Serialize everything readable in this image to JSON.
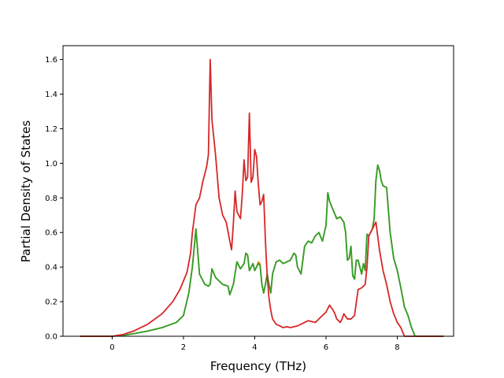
{
  "chart_data": {
    "type": "line",
    "xlabel": "Frequency (THz)",
    "ylabel": "Partial Density of States",
    "xlim": [
      -1.38,
      9.58
    ],
    "ylim": [
      0.0,
      1.68
    ],
    "xticks": [
      0,
      2,
      4,
      6,
      8
    ],
    "yticks": [
      0.0,
      0.2,
      0.4,
      0.6,
      0.8,
      1.0,
      1.2,
      1.4,
      1.6
    ],
    "xtick_labels": [
      "0",
      "2",
      "4",
      "6",
      "8"
    ],
    "ytick_labels": [
      "0.0",
      "0.2",
      "0.4",
      "0.6",
      "0.8",
      "1.0",
      "1.2",
      "1.4",
      "1.6"
    ],
    "grid": false,
    "series": [
      {
        "color": "#ff7f0e",
        "x": [
          -0.9,
          0.0,
          0.3,
          0.6,
          1.0,
          1.4,
          1.8,
          2.0,
          2.15,
          2.25,
          2.35,
          2.45,
          2.6,
          2.7,
          2.75,
          2.8,
          2.9,
          3.0,
          3.1,
          3.25,
          3.3,
          3.4,
          3.5,
          3.6,
          3.7,
          3.75,
          3.8,
          3.85,
          3.9,
          3.95,
          4.0,
          4.05,
          4.1,
          4.15,
          4.2,
          4.25,
          4.3,
          4.35,
          4.4,
          4.45,
          4.5,
          4.6,
          4.7,
          4.8,
          4.9,
          5.0,
          5.1,
          5.15,
          5.2,
          5.3,
          5.4,
          5.5,
          5.6,
          5.7,
          5.8,
          5.9,
          6.0,
          6.05,
          6.1,
          6.2,
          6.3,
          6.4,
          6.5,
          6.55,
          6.6,
          6.65,
          6.7,
          6.75,
          6.8,
          6.85,
          6.9,
          7.0,
          7.05,
          7.1,
          7.15,
          7.2,
          7.3,
          7.35,
          7.4,
          7.45,
          7.5,
          7.55,
          7.6,
          7.7,
          7.8,
          7.9,
          8.0,
          8.1,
          8.2,
          8.3,
          8.4,
          8.5,
          8.6,
          9.3
        ],
        "values": [
          0.0,
          0.0,
          0.005,
          0.015,
          0.03,
          0.05,
          0.08,
          0.12,
          0.25,
          0.4,
          0.62,
          0.36,
          0.3,
          0.29,
          0.3,
          0.39,
          0.34,
          0.32,
          0.3,
          0.29,
          0.24,
          0.3,
          0.43,
          0.39,
          0.42,
          0.48,
          0.47,
          0.38,
          0.4,
          0.42,
          0.38,
          0.4,
          0.43,
          0.42,
          0.3,
          0.25,
          0.3,
          0.36,
          0.3,
          0.25,
          0.36,
          0.43,
          0.44,
          0.42,
          0.43,
          0.44,
          0.48,
          0.47,
          0.4,
          0.36,
          0.52,
          0.55,
          0.54,
          0.58,
          0.6,
          0.55,
          0.64,
          0.83,
          0.78,
          0.73,
          0.68,
          0.69,
          0.66,
          0.6,
          0.44,
          0.45,
          0.52,
          0.35,
          0.33,
          0.44,
          0.44,
          0.36,
          0.42,
          0.38,
          0.59,
          0.58,
          0.62,
          0.68,
          0.9,
          0.99,
          0.96,
          0.9,
          0.87,
          0.86,
          0.6,
          0.45,
          0.38,
          0.28,
          0.17,
          0.12,
          0.05,
          0.0,
          0.0,
          0.0
        ]
      },
      {
        "color": "#2ca02c",
        "x": [
          -0.9,
          0.0,
          0.3,
          0.6,
          1.0,
          1.4,
          1.8,
          2.0,
          2.15,
          2.25,
          2.35,
          2.45,
          2.6,
          2.7,
          2.75,
          2.8,
          2.9,
          3.0,
          3.1,
          3.25,
          3.3,
          3.4,
          3.5,
          3.6,
          3.7,
          3.75,
          3.8,
          3.85,
          3.9,
          3.95,
          4.0,
          4.05,
          4.1,
          4.15,
          4.2,
          4.25,
          4.3,
          4.35,
          4.4,
          4.45,
          4.5,
          4.6,
          4.7,
          4.8,
          4.9,
          5.0,
          5.1,
          5.15,
          5.2,
          5.3,
          5.4,
          5.5,
          5.6,
          5.7,
          5.8,
          5.9,
          6.0,
          6.05,
          6.1,
          6.2,
          6.3,
          6.4,
          6.5,
          6.55,
          6.6,
          6.65,
          6.7,
          6.75,
          6.8,
          6.85,
          6.9,
          7.0,
          7.05,
          7.1,
          7.15,
          7.2,
          7.3,
          7.35,
          7.4,
          7.45,
          7.5,
          7.55,
          7.6,
          7.7,
          7.8,
          7.9,
          8.0,
          8.1,
          8.2,
          8.3,
          8.4,
          8.5,
          8.6,
          9.3
        ],
        "values": [
          0.0,
          0.0,
          0.005,
          0.015,
          0.03,
          0.05,
          0.08,
          0.12,
          0.25,
          0.4,
          0.62,
          0.36,
          0.3,
          0.29,
          0.3,
          0.39,
          0.34,
          0.32,
          0.3,
          0.29,
          0.24,
          0.3,
          0.43,
          0.39,
          0.42,
          0.48,
          0.47,
          0.38,
          0.4,
          0.42,
          0.38,
          0.4,
          0.42,
          0.41,
          0.3,
          0.25,
          0.3,
          0.36,
          0.3,
          0.25,
          0.36,
          0.43,
          0.44,
          0.42,
          0.43,
          0.44,
          0.48,
          0.47,
          0.4,
          0.36,
          0.52,
          0.55,
          0.54,
          0.58,
          0.6,
          0.55,
          0.64,
          0.83,
          0.78,
          0.73,
          0.68,
          0.69,
          0.66,
          0.6,
          0.44,
          0.45,
          0.52,
          0.35,
          0.33,
          0.44,
          0.44,
          0.36,
          0.42,
          0.38,
          0.59,
          0.58,
          0.62,
          0.68,
          0.9,
          0.99,
          0.96,
          0.9,
          0.87,
          0.86,
          0.6,
          0.45,
          0.38,
          0.28,
          0.17,
          0.12,
          0.05,
          0.0,
          0.0,
          0.0
        ]
      },
      {
        "color": "#d62728",
        "x": [
          -0.9,
          0.0,
          0.3,
          0.6,
          1.0,
          1.4,
          1.7,
          1.9,
          2.1,
          2.2,
          2.25,
          2.35,
          2.45,
          2.55,
          2.65,
          2.7,
          2.75,
          2.8,
          2.9,
          3.0,
          3.1,
          3.2,
          3.3,
          3.35,
          3.4,
          3.45,
          3.5,
          3.6,
          3.65,
          3.7,
          3.75,
          3.8,
          3.85,
          3.9,
          3.95,
          4.0,
          4.05,
          4.1,
          4.15,
          4.2,
          4.25,
          4.3,
          4.35,
          4.4,
          4.45,
          4.5,
          4.6,
          4.7,
          4.8,
          4.9,
          5.0,
          5.1,
          5.2,
          5.3,
          5.4,
          5.5,
          5.6,
          5.7,
          5.8,
          5.9,
          6.0,
          6.1,
          6.2,
          6.25,
          6.3,
          6.4,
          6.45,
          6.5,
          6.6,
          6.7,
          6.8,
          6.9,
          7.0,
          7.1,
          7.15,
          7.2,
          7.3,
          7.4,
          7.5,
          7.6,
          7.7,
          7.8,
          7.9,
          8.0,
          8.1,
          8.2,
          8.3,
          8.4,
          8.5,
          8.6,
          9.3
        ],
        "values": [
          0.0,
          0.0,
          0.01,
          0.03,
          0.07,
          0.13,
          0.2,
          0.27,
          0.37,
          0.48,
          0.6,
          0.76,
          0.8,
          0.9,
          0.98,
          1.05,
          1.6,
          1.25,
          1.05,
          0.8,
          0.7,
          0.66,
          0.55,
          0.5,
          0.65,
          0.84,
          0.72,
          0.68,
          0.82,
          1.02,
          0.9,
          0.92,
          1.29,
          0.89,
          0.92,
          1.08,
          1.04,
          0.88,
          0.76,
          0.78,
          0.82,
          0.55,
          0.35,
          0.22,
          0.15,
          0.1,
          0.07,
          0.06,
          0.05,
          0.055,
          0.05,
          0.055,
          0.06,
          0.07,
          0.08,
          0.09,
          0.085,
          0.08,
          0.1,
          0.12,
          0.14,
          0.18,
          0.15,
          0.13,
          0.1,
          0.08,
          0.1,
          0.13,
          0.1,
          0.1,
          0.12,
          0.27,
          0.28,
          0.3,
          0.4,
          0.58,
          0.62,
          0.66,
          0.5,
          0.38,
          0.3,
          0.2,
          0.13,
          0.08,
          0.05,
          0.0,
          0.0,
          0.0,
          0.0,
          0.0,
          0.0
        ]
      }
    ]
  }
}
